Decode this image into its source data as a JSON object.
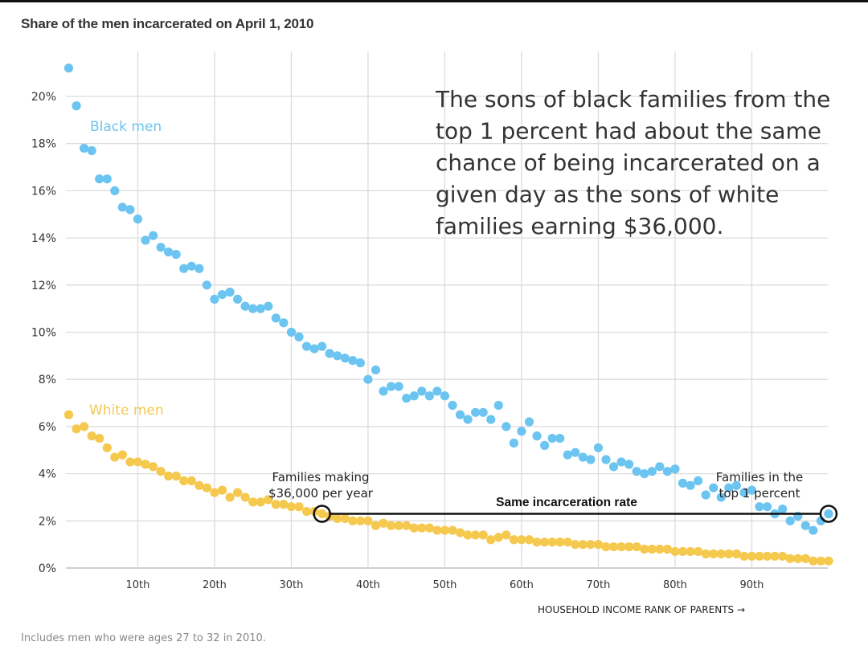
{
  "chart_data": {
    "type": "scatter",
    "title": "Share of the men incarcerated on April 1, 2010",
    "xlabel": "HOUSEHOLD INCOME RANK OF PARENTS →",
    "ylabel": "",
    "xlim": [
      1,
      100
    ],
    "ylim": [
      0,
      22
    ],
    "grid": true,
    "x_ticks": [
      10,
      20,
      30,
      40,
      50,
      60,
      70,
      80,
      90
    ],
    "x_tick_labels": [
      "10th",
      "20th",
      "30th",
      "40th",
      "50th",
      "60th",
      "70th",
      "80th",
      "90th"
    ],
    "y_ticks": [
      0,
      2,
      4,
      6,
      8,
      10,
      12,
      14,
      16,
      18,
      20
    ],
    "y_tick_labels": [
      "0%",
      "2%",
      "4%",
      "6%",
      "8%",
      "10%",
      "12%",
      "14%",
      "16%",
      "18%",
      "20%"
    ],
    "series": [
      {
        "name": "Black men",
        "color": "#6cc4f0",
        "values": [
          21.2,
          19.6,
          17.8,
          17.7,
          16.5,
          16.5,
          16.0,
          15.3,
          15.2,
          14.8,
          13.9,
          14.1,
          13.6,
          13.4,
          13.3,
          12.7,
          12.8,
          12.7,
          12.0,
          11.4,
          11.6,
          11.7,
          11.4,
          11.1,
          11.0,
          11.0,
          11.1,
          10.6,
          10.4,
          10.0,
          9.8,
          9.4,
          9.3,
          9.4,
          9.1,
          9.0,
          8.9,
          8.8,
          8.7,
          8.0,
          8.4,
          7.5,
          7.7,
          7.7,
          7.2,
          7.3,
          7.5,
          7.3,
          7.5,
          7.3,
          6.9,
          6.5,
          6.3,
          6.6,
          6.6,
          6.3,
          6.9,
          6.0,
          5.3,
          5.8,
          6.2,
          5.6,
          5.2,
          5.5,
          5.5,
          4.8,
          4.9,
          4.7,
          4.6,
          5.1,
          4.6,
          4.3,
          4.5,
          4.4,
          4.1,
          4.0,
          4.1,
          4.3,
          4.1,
          4.2,
          3.6,
          3.5,
          3.7,
          3.1,
          3.4,
          3.0,
          3.4,
          3.5,
          3.2,
          3.3,
          2.6,
          2.6,
          2.3,
          2.5,
          2.0,
          2.2,
          1.8,
          1.6,
          2.0,
          2.3
        ]
      },
      {
        "name": "White men",
        "color": "#f5c84e",
        "values": [
          6.5,
          5.9,
          6.0,
          5.6,
          5.5,
          5.1,
          4.7,
          4.8,
          4.5,
          4.5,
          4.4,
          4.3,
          4.1,
          3.9,
          3.9,
          3.7,
          3.7,
          3.5,
          3.4,
          3.2,
          3.3,
          3.0,
          3.2,
          3.0,
          2.8,
          2.8,
          2.9,
          2.7,
          2.7,
          2.6,
          2.6,
          2.4,
          2.4,
          2.3,
          2.2,
          2.1,
          2.1,
          2.0,
          2.0,
          2.0,
          1.8,
          1.9,
          1.8,
          1.8,
          1.8,
          1.7,
          1.7,
          1.7,
          1.6,
          1.6,
          1.6,
          1.5,
          1.4,
          1.4,
          1.4,
          1.2,
          1.3,
          1.4,
          1.2,
          1.2,
          1.2,
          1.1,
          1.1,
          1.1,
          1.1,
          1.1,
          1.0,
          1.0,
          1.0,
          1.0,
          0.9,
          0.9,
          0.9,
          0.9,
          0.9,
          0.8,
          0.8,
          0.8,
          0.8,
          0.7,
          0.7,
          0.7,
          0.7,
          0.6,
          0.6,
          0.6,
          0.6,
          0.6,
          0.5,
          0.5,
          0.5,
          0.5,
          0.5,
          0.5,
          0.4,
          0.4,
          0.4,
          0.3,
          0.3,
          0.3
        ]
      }
    ],
    "annotations": {
      "callout_lines": [
        "The sons of black families from the",
        "top 1 percent had about the same",
        "chance of being incarcerated on a",
        "given day as the sons of white",
        "families earning $36,000."
      ],
      "left_marker": {
        "label_lines": [
          "Families making",
          "$36,000 per year"
        ],
        "rank": 34,
        "value": 2.3
      },
      "right_marker": {
        "label_lines": [
          "Families in the",
          "top 1 percent"
        ],
        "rank": 100,
        "value": 2.3
      },
      "connector_label": "Same incarceration rate"
    },
    "footnote": "Includes men who were ages 27 to 32 in 2010."
  }
}
